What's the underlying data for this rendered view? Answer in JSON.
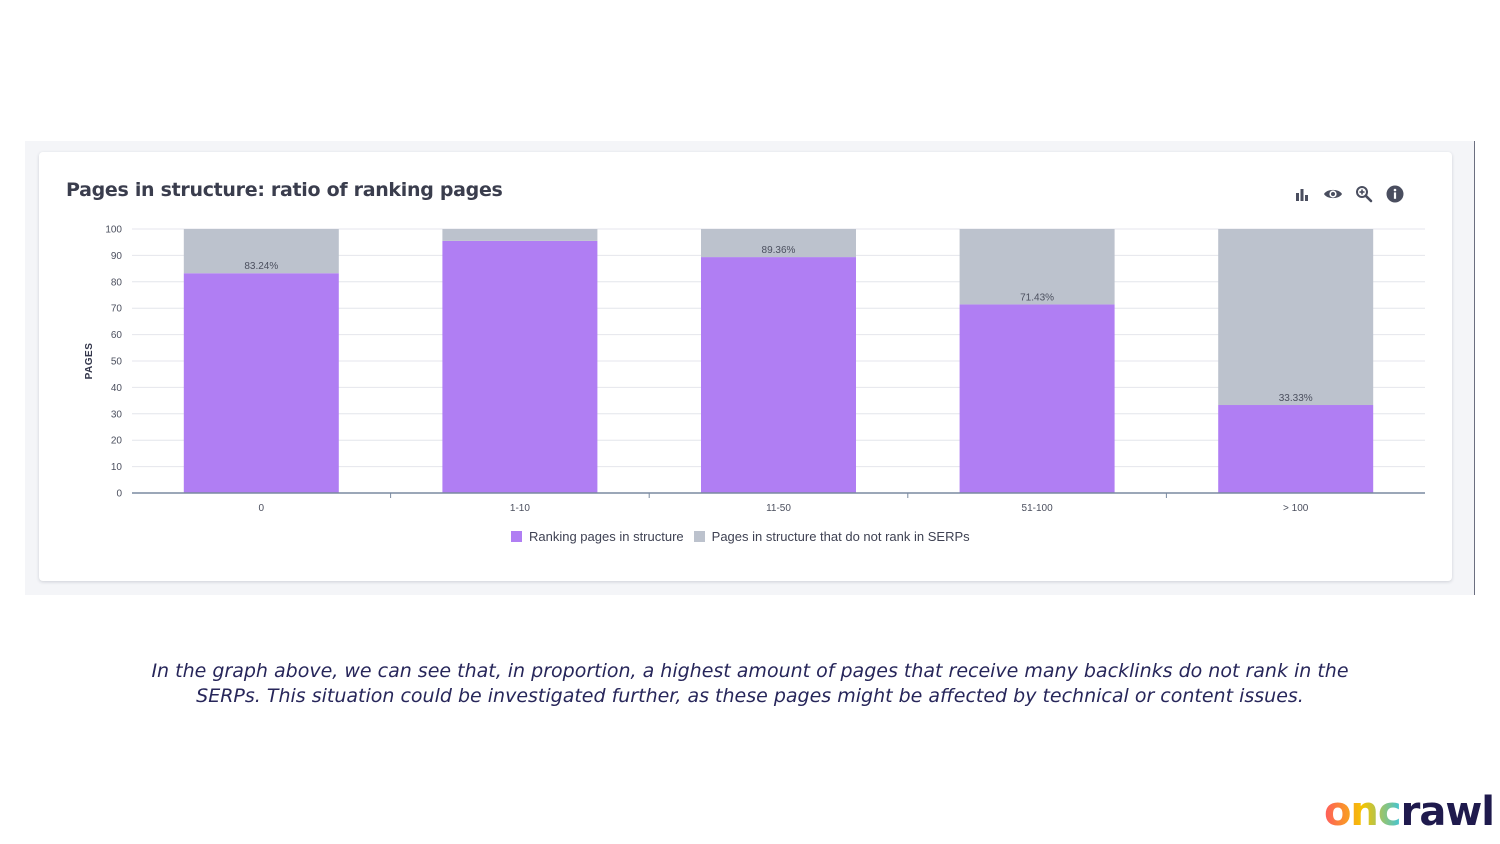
{
  "card": {
    "title": "Pages in structure: ratio of ranking pages"
  },
  "toolbar": [
    {
      "icon": "bar-chart-icon"
    },
    {
      "icon": "eye-icon"
    },
    {
      "icon": "zoom-icon"
    },
    {
      "icon": "info-icon"
    }
  ],
  "colors": {
    "ranking": "#b07ef3",
    "not_ranking": "#bcc2cd",
    "grid": "#e4e6ec",
    "axis": "#7a8aa0"
  },
  "chart_data": {
    "type": "bar",
    "stacked": true,
    "title": "Pages in structure: ratio of ranking pages",
    "xlabel": "",
    "ylabel": "PAGES",
    "ylim": [
      0,
      100
    ],
    "yticks": [
      0,
      10,
      20,
      30,
      40,
      50,
      60,
      70,
      80,
      90,
      100
    ],
    "categories": [
      "0",
      "1-10",
      "11-50",
      "51-100",
      "> 100"
    ],
    "series": [
      {
        "name": "Ranking pages in structure",
        "values": [
          83.24,
          95.5,
          89.36,
          71.43,
          33.33
        ]
      },
      {
        "name": "Pages in structure that do not rank in SERPs",
        "values": [
          16.76,
          4.5,
          10.64,
          28.57,
          66.67
        ]
      }
    ],
    "data_labels": [
      "83.24%",
      "",
      "89.36%",
      "71.43%",
      "33.33%"
    ],
    "grid": true,
    "legend": "bottom"
  },
  "legend": {
    "ranking": "Ranking pages in structure",
    "not_ranking": "Pages in structure that do not rank in SERPs"
  },
  "caption": "In the graph above, we can see that, in proportion, a highest amount of pages that receive many backlinks do not rank in the SERPs. This situation could be investigated further, as these pages might be affected by technical or content issues.",
  "logo": {
    "accent": "onc",
    "rest": "rawl"
  }
}
